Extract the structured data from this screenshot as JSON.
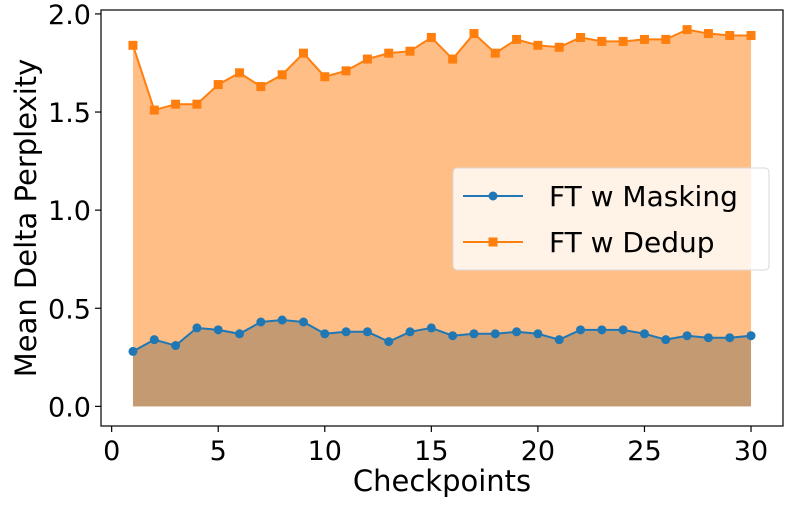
{
  "chart_data": {
    "type": "area",
    "title": "",
    "xlabel": "Checkpoints",
    "ylabel": "Mean Delta Perplexity",
    "xlim": [
      -0.5,
      31.5
    ],
    "ylim": [
      -0.1,
      2.02
    ],
    "xticks": [
      0,
      5,
      10,
      15,
      20,
      25,
      30
    ],
    "yticks": [
      0.0,
      0.5,
      1.0,
      1.5,
      2.0
    ],
    "xtick_labels": [
      "0",
      "5",
      "10",
      "15",
      "20",
      "25",
      "30"
    ],
    "ytick_labels": [
      "0.0",
      "0.5",
      "1.0",
      "1.5",
      "2.0"
    ],
    "grid": false,
    "legend_position": "center-right",
    "x": [
      1,
      2,
      3,
      4,
      5,
      6,
      7,
      8,
      9,
      10,
      11,
      12,
      13,
      14,
      15,
      16,
      17,
      18,
      19,
      20,
      21,
      22,
      23,
      24,
      25,
      26,
      27,
      28,
      29,
      30
    ],
    "series": [
      {
        "name": "FT w Masking",
        "marker": "circle",
        "color": "#1f77b4",
        "fill_color": "#c49a72",
        "values": [
          0.28,
          0.34,
          0.31,
          0.4,
          0.39,
          0.37,
          0.43,
          0.44,
          0.43,
          0.37,
          0.38,
          0.38,
          0.33,
          0.38,
          0.4,
          0.36,
          0.37,
          0.37,
          0.38,
          0.37,
          0.34,
          0.39,
          0.39,
          0.39,
          0.37,
          0.34,
          0.36,
          0.35,
          0.35,
          0.36
        ]
      },
      {
        "name": "FT w Dedup",
        "marker": "square",
        "color": "#ff7f0e",
        "fill_color": "#ffbe86",
        "values": [
          1.84,
          1.51,
          1.54,
          1.54,
          1.64,
          1.7,
          1.63,
          1.69,
          1.8,
          1.68,
          1.71,
          1.77,
          1.8,
          1.81,
          1.88,
          1.77,
          1.9,
          1.8,
          1.87,
          1.84,
          1.83,
          1.88,
          1.86,
          1.86,
          1.87,
          1.87,
          1.92,
          1.9,
          1.89,
          1.89
        ]
      }
    ]
  }
}
